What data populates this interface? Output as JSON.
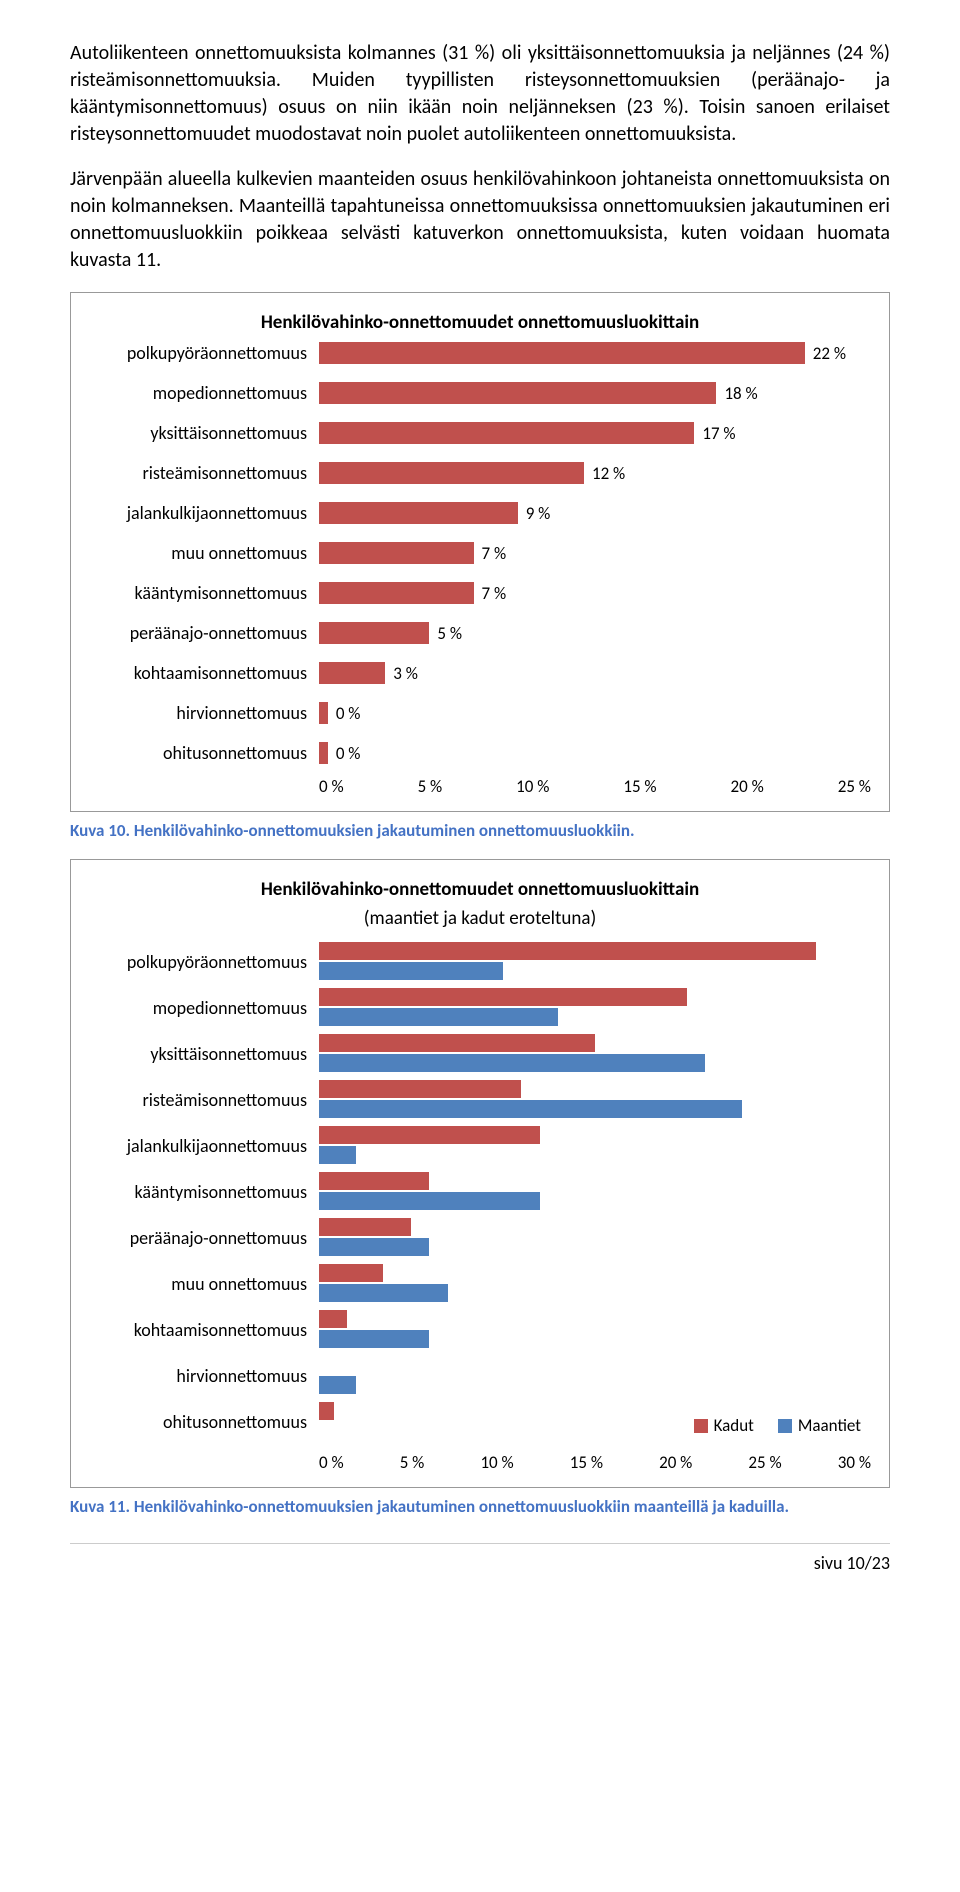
{
  "paragraphs": {
    "p1": "Autoliikenteen onnettomuuksista kolmannes (31 %) oli yksittäisonnettomuuksia ja neljännes (24 %) risteämisonnettomuuksia. Muiden tyypillisten risteysonnettomuuksien (peräänajo- ja kääntymisonnettomuus) osuus on niin ikään noin neljänneksen (23 %). Toisin sanoen erilaiset risteysonnettomuudet muodostavat noin puolet autoliikenteen onnettomuuksista.",
    "p2": "Järvenpään alueella kulkevien maanteiden osuus henkilövahinkoon johtaneista onnettomuuksista on noin kolmanneksen. Maanteillä tapahtuneissa onnettomuuksissa onnettomuuksien jakautuminen eri onnettomuusluokkiin poikkeaa selvästi katuverkon onnettomuuksista, kuten voidaan huomata kuvasta 11."
  },
  "chart1": {
    "title": "Henkilövahinko-onnettomuudet onnettomuusluokittain",
    "bar_color": "#c0504d",
    "xmax": 25,
    "ticks": [
      "0 %",
      "5 %",
      "10 %",
      "15 %",
      "20 %",
      "25 %"
    ],
    "rows": [
      {
        "label": "polkupyöräonnettomuus",
        "value": 22,
        "text": "22 %"
      },
      {
        "label": "mopedionnettomuus",
        "value": 18,
        "text": "18 %"
      },
      {
        "label": "yksittäisonnettomuus",
        "value": 17,
        "text": "17 %"
      },
      {
        "label": "risteämisonnettomuus",
        "value": 12,
        "text": "12 %"
      },
      {
        "label": "jalankulkijaonnettomuus",
        "value": 9,
        "text": "9 %"
      },
      {
        "label": "muu onnettomuus",
        "value": 7,
        "text": "7 %"
      },
      {
        "label": "kääntymisonnettomuus",
        "value": 7,
        "text": "7 %"
      },
      {
        "label": "peräänajo-onnettomuus",
        "value": 5,
        "text": "5 %"
      },
      {
        "label": "kohtaamisonnettomuus",
        "value": 3,
        "text": "3 %"
      },
      {
        "label": "hirvionnettomuus",
        "value": 0.4,
        "text": "0 %"
      },
      {
        "label": "ohitusonnettomuus",
        "value": 0.4,
        "text": "0 %"
      }
    ]
  },
  "caption1": "Kuva 10. Henkilövahinko-onnettomuuksien jakautuminen onnettomuusluokkiin.",
  "chart2": {
    "title": "Henkilövahinko-onnettomuudet onnettomuusluokittain",
    "subtitle": "(maantiet ja kadut eroteltuna)",
    "color_kadut": "#c0504d",
    "color_maantiet": "#4f81bd",
    "xmax": 30,
    "ticks": [
      "0 %",
      "5 %",
      "10 %",
      "15 %",
      "20 %",
      "25 %",
      "30 %"
    ],
    "legend": {
      "kadut": "Kadut",
      "maantiet": "Maantiet"
    },
    "rows": [
      {
        "label": "polkupyöräonnettomuus",
        "kadut": 27,
        "maantiet": 10
      },
      {
        "label": "mopedionnettomuus",
        "kadut": 20,
        "maantiet": 13
      },
      {
        "label": "yksittäisonnettomuus",
        "kadut": 15,
        "maantiet": 21
      },
      {
        "label": "risteämisonnettomuus",
        "kadut": 11,
        "maantiet": 23
      },
      {
        "label": "jalankulkijaonnettomuus",
        "kadut": 12,
        "maantiet": 2
      },
      {
        "label": "kääntymisonnettomuus",
        "kadut": 6,
        "maantiet": 12
      },
      {
        "label": "peräänajo-onnettomuus",
        "kadut": 5,
        "maantiet": 6
      },
      {
        "label": "muu onnettomuus",
        "kadut": 3.5,
        "maantiet": 7
      },
      {
        "label": "kohtaamisonnettomuus",
        "kadut": 1.5,
        "maantiet": 6
      },
      {
        "label": "hirvionnettomuus",
        "kadut": 0,
        "maantiet": 2
      },
      {
        "label": "ohitusonnettomuus",
        "kadut": 0.8,
        "maantiet": 0
      }
    ]
  },
  "caption2": "Kuva 11. Henkilövahinko-onnettomuuksien jakautuminen onnettomuusluokkiin maanteillä ja kaduilla.",
  "footer": "sivu 10/23"
}
